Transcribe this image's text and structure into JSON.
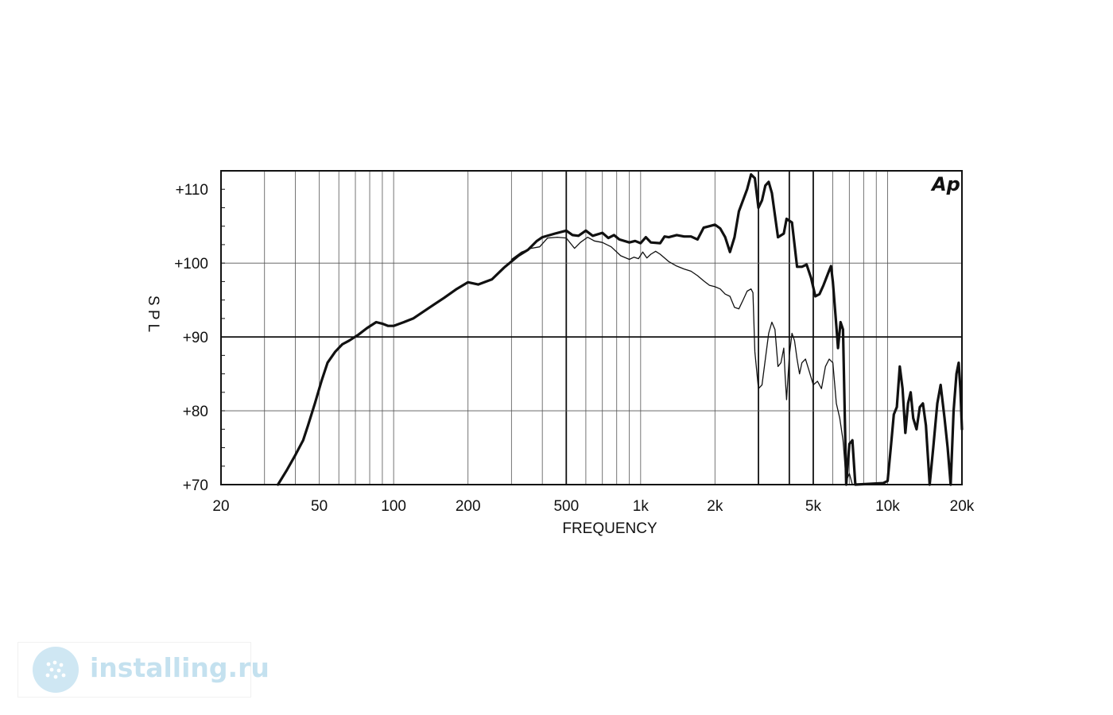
{
  "chart_data": {
    "type": "line",
    "xlabel": "FREQUENCY",
    "ylabel": "S P L",
    "x_scale": "log",
    "xlim": [
      20,
      20000
    ],
    "ylim": [
      70,
      112.5
    ],
    "x_ticks": [
      20,
      50,
      100,
      200,
      500,
      1000,
      2000,
      5000,
      10000,
      20000
    ],
    "x_tick_labels": [
      "20",
      "50",
      "100",
      "200",
      "500",
      "1k",
      "2k",
      "5k",
      "10k",
      "20k"
    ],
    "y_ticks": [
      70,
      80,
      90,
      100,
      110
    ],
    "y_tick_labels": [
      "+70",
      "+80",
      "+90",
      "+100",
      "+110"
    ],
    "grid": true,
    "legend": "none",
    "series": [
      {
        "style": "bold",
        "color": "#111111",
        "points": [
          [
            34,
            70
          ],
          [
            37,
            72
          ],
          [
            40,
            74
          ],
          [
            43,
            76
          ],
          [
            45,
            78
          ],
          [
            48,
            81
          ],
          [
            51,
            84
          ],
          [
            54,
            86.5
          ],
          [
            58,
            88
          ],
          [
            62,
            89
          ],
          [
            66,
            89.5
          ],
          [
            72,
            90.3
          ],
          [
            78,
            91.2
          ],
          [
            85,
            92
          ],
          [
            90,
            91.8
          ],
          [
            95,
            91.5
          ],
          [
            100,
            91.5
          ],
          [
            110,
            92
          ],
          [
            120,
            92.5
          ],
          [
            140,
            94
          ],
          [
            160,
            95.3
          ],
          [
            180,
            96.5
          ],
          [
            200,
            97.4
          ],
          [
            220,
            97.1
          ],
          [
            250,
            97.8
          ],
          [
            280,
            99.4
          ],
          [
            320,
            101
          ],
          [
            350,
            101.8
          ],
          [
            380,
            103
          ],
          [
            400,
            103.5
          ],
          [
            450,
            104
          ],
          [
            500,
            104.4
          ],
          [
            530,
            103.8
          ],
          [
            560,
            103.7
          ],
          [
            600,
            104.4
          ],
          [
            640,
            103.7
          ],
          [
            700,
            104.1
          ],
          [
            740,
            103.4
          ],
          [
            780,
            103.8
          ],
          [
            820,
            103.2
          ],
          [
            900,
            102.8
          ],
          [
            950,
            103
          ],
          [
            1000,
            102.7
          ],
          [
            1050,
            103.5
          ],
          [
            1100,
            102.8
          ],
          [
            1200,
            102.7
          ],
          [
            1250,
            103.6
          ],
          [
            1300,
            103.5
          ],
          [
            1400,
            103.8
          ],
          [
            1500,
            103.6
          ],
          [
            1600,
            103.6
          ],
          [
            1700,
            103.2
          ],
          [
            1800,
            104.8
          ],
          [
            1900,
            105
          ],
          [
            2000,
            105.2
          ],
          [
            2100,
            104.7
          ],
          [
            2200,
            103.5
          ],
          [
            2300,
            101.5
          ],
          [
            2400,
            103.5
          ],
          [
            2500,
            107
          ],
          [
            2700,
            110
          ],
          [
            2800,
            112
          ],
          [
            2900,
            111.5
          ],
          [
            3000,
            107.5
          ],
          [
            3100,
            108.5
          ],
          [
            3200,
            110.5
          ],
          [
            3300,
            111
          ],
          [
            3400,
            109.5
          ],
          [
            3600,
            103.5
          ],
          [
            3800,
            104
          ],
          [
            3900,
            106
          ],
          [
            4100,
            105.5
          ],
          [
            4300,
            99.5
          ],
          [
            4500,
            99.5
          ],
          [
            4700,
            99.8
          ],
          [
            4900,
            98
          ],
          [
            5100,
            95.5
          ],
          [
            5300,
            95.8
          ],
          [
            5500,
            97
          ],
          [
            5800,
            99
          ],
          [
            5900,
            99.6
          ],
          [
            6000,
            97.5
          ],
          [
            6100,
            94.5
          ],
          [
            6200,
            91.5
          ],
          [
            6300,
            88.5
          ],
          [
            6450,
            92
          ],
          [
            6600,
            91
          ],
          [
            6800,
            70
          ],
          [
            7000,
            75.5
          ],
          [
            7200,
            76
          ],
          [
            7400,
            70
          ],
          [
            9600,
            70.2
          ],
          [
            10000,
            70.5
          ],
          [
            10300,
            75
          ],
          [
            10600,
            79.5
          ],
          [
            10900,
            80.5
          ],
          [
            11200,
            86
          ],
          [
            11500,
            83
          ],
          [
            11800,
            77
          ],
          [
            12100,
            81
          ],
          [
            12400,
            82.5
          ],
          [
            12700,
            79
          ],
          [
            13100,
            77.5
          ],
          [
            13500,
            80.5
          ],
          [
            13900,
            81
          ],
          [
            14300,
            78
          ],
          [
            14800,
            70
          ],
          [
            15300,
            75
          ],
          [
            15900,
            81
          ],
          [
            16400,
            83.5
          ],
          [
            17000,
            79
          ],
          [
            17500,
            75
          ],
          [
            18000,
            70
          ],
          [
            18500,
            80
          ],
          [
            19000,
            85
          ],
          [
            19400,
            86.5
          ],
          [
            19700,
            83
          ],
          [
            20000,
            77.5
          ]
        ]
      },
      {
        "style": "thin",
        "color": "#111111",
        "points": [
          [
            300,
            100.5
          ],
          [
            330,
            101.5
          ],
          [
            360,
            102
          ],
          [
            390,
            102.2
          ],
          [
            420,
            103.4
          ],
          [
            460,
            103.5
          ],
          [
            500,
            103.4
          ],
          [
            540,
            102
          ],
          [
            570,
            102.8
          ],
          [
            610,
            103.5
          ],
          [
            650,
            103
          ],
          [
            700,
            102.8
          ],
          [
            760,
            102.2
          ],
          [
            830,
            101
          ],
          [
            900,
            100.5
          ],
          [
            940,
            100.8
          ],
          [
            980,
            100.6
          ],
          [
            1020,
            101.5
          ],
          [
            1060,
            100.7
          ],
          [
            1100,
            101.2
          ],
          [
            1150,
            101.6
          ],
          [
            1200,
            101.2
          ],
          [
            1300,
            100.2
          ],
          [
            1400,
            99.6
          ],
          [
            1500,
            99.2
          ],
          [
            1600,
            98.9
          ],
          [
            1700,
            98.3
          ],
          [
            1800,
            97.6
          ],
          [
            1900,
            97
          ],
          [
            2000,
            96.8
          ],
          [
            2100,
            96.5
          ],
          [
            2200,
            95.8
          ],
          [
            2300,
            95.5
          ],
          [
            2400,
            94
          ],
          [
            2500,
            93.8
          ],
          [
            2600,
            95
          ],
          [
            2700,
            96.2
          ],
          [
            2800,
            96.5
          ],
          [
            2850,
            96
          ],
          [
            2900,
            88
          ],
          [
            3000,
            83
          ],
          [
            3100,
            83.5
          ],
          [
            3200,
            87
          ],
          [
            3300,
            90.5
          ],
          [
            3400,
            92
          ],
          [
            3500,
            91
          ],
          [
            3600,
            86
          ],
          [
            3700,
            86.5
          ],
          [
            3800,
            88.5
          ],
          [
            3850,
            84.5
          ],
          [
            3900,
            81.5
          ],
          [
            4000,
            87.5
          ],
          [
            4100,
            90.5
          ],
          [
            4200,
            89.5
          ],
          [
            4300,
            87
          ],
          [
            4400,
            85
          ],
          [
            4500,
            86.5
          ],
          [
            4650,
            87
          ],
          [
            4800,
            85.5
          ],
          [
            5000,
            83.5
          ],
          [
            5200,
            84
          ],
          [
            5400,
            83
          ],
          [
            5600,
            86
          ],
          [
            5800,
            87
          ],
          [
            6000,
            86.5
          ],
          [
            6200,
            81
          ],
          [
            6400,
            79
          ],
          [
            6600,
            76
          ],
          [
            6800,
            70.5
          ],
          [
            7000,
            71.5
          ],
          [
            7200,
            70
          ]
        ]
      }
    ]
  },
  "logo": {
    "text": "Ap"
  },
  "watermark": {
    "text": "installing.ru"
  }
}
